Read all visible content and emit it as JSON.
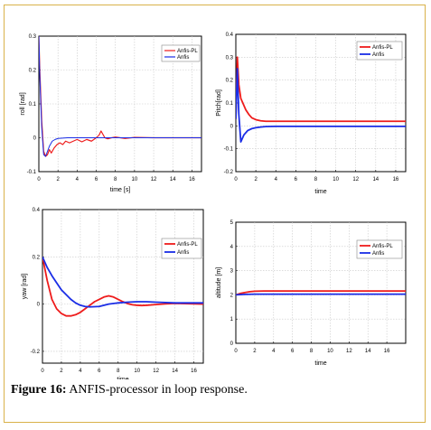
{
  "caption": {
    "label": "Figure 16:",
    "text": "ANFIS-processor in loop response."
  },
  "colors": {
    "series_1": "#ee1c1c",
    "series_2": "#1a2de6"
  },
  "chart_data": [
    {
      "type": "line",
      "id": "roll",
      "xlabel": "time [s]",
      "ylabel": "roll [rad]",
      "xlim": [
        0,
        17
      ],
      "ylim": [
        -0.1,
        0.3
      ],
      "xticks": [
        0,
        2,
        4,
        6,
        8,
        10,
        12,
        14,
        16
      ],
      "yticks": [
        -0.1,
        0,
        0.1,
        0.2,
        0.3
      ],
      "ytick_labels": [
        "-0.1",
        "0",
        "0.1",
        "0.2",
        "0.3"
      ],
      "grid": true,
      "legend_position": "top-right",
      "series": [
        {
          "name": "Anfis-PL",
          "color": "#ee1c1c",
          "width": 1.2,
          "x": [
            0,
            0.1,
            0.3,
            0.5,
            0.7,
            0.9,
            1.1,
            1.3,
            1.6,
            1.9,
            2.2,
            2.5,
            2.8,
            3.2,
            3.6,
            4.0,
            4.5,
            5.0,
            5.5,
            6.0,
            6.3,
            6.5,
            6.7,
            6.9,
            7.2,
            7.6,
            8.0,
            9,
            10,
            12,
            14,
            16,
            17
          ],
          "y": [
            0.3,
            0.2,
            0.05,
            -0.04,
            -0.055,
            -0.05,
            -0.035,
            -0.045,
            -0.03,
            -0.02,
            -0.015,
            -0.02,
            -0.01,
            -0.015,
            -0.01,
            -0.005,
            -0.012,
            -0.005,
            -0.01,
            0,
            0.008,
            0.02,
            0.01,
            0,
            -0.003,
            0,
            0.002,
            -0.002,
            0.001,
            0,
            0,
            0,
            0
          ]
        },
        {
          "name": "Anfis",
          "color": "#1a2de6",
          "width": 1.0,
          "x": [
            0,
            0.1,
            0.3,
            0.5,
            0.7,
            0.9,
            1.1,
            1.4,
            1.7,
            2.0,
            2.5,
            3.0,
            4.0,
            5.0,
            6.0,
            8.0,
            10,
            12,
            14,
            16,
            17
          ],
          "y": [
            0.3,
            0.18,
            0.03,
            -0.05,
            -0.055,
            -0.04,
            -0.025,
            -0.01,
            -0.005,
            -0.002,
            -0.001,
            0,
            0,
            0,
            0,
            0,
            0,
            0,
            0,
            0,
            0
          ]
        }
      ]
    },
    {
      "type": "line",
      "id": "pitch",
      "xlabel": "time",
      "ylabel": "Pitch[rad]",
      "xlim": [
        0,
        17
      ],
      "ylim": [
        -0.2,
        0.4
      ],
      "xticks": [
        0,
        2,
        4,
        6,
        8,
        10,
        12,
        14,
        16
      ],
      "yticks": [
        -0.2,
        -0.1,
        0,
        0.1,
        0.2,
        0.3,
        0.4
      ],
      "ytick_labels": [
        "-0.2",
        "-0.1",
        "0",
        "0.1",
        "0.2",
        "0.3",
        "0.4"
      ],
      "grid": true,
      "legend_position": "top-right",
      "series": [
        {
          "name": "Anfis-PL",
          "color": "#ee1c1c",
          "width": 1.8,
          "x": [
            0,
            0.15,
            0.3,
            0.5,
            0.7,
            1.0,
            1.3,
            1.6,
            2.0,
            2.5,
            3.0,
            4.0,
            6.0,
            8.0,
            10,
            12,
            14,
            16,
            17
          ],
          "y": [
            0.03,
            0.3,
            0.18,
            0.12,
            0.1,
            0.07,
            0.05,
            0.035,
            0.027,
            0.022,
            0.02,
            0.02,
            0.02,
            0.02,
            0.02,
            0.02,
            0.02,
            0.02,
            0.02
          ]
        },
        {
          "name": "Anfis",
          "color": "#1a2de6",
          "width": 1.8,
          "x": [
            0,
            0.15,
            0.3,
            0.5,
            0.8,
            1.2,
            1.6,
            2.0,
            2.5,
            3.0,
            4.0,
            6.0,
            8.0,
            10,
            12,
            14,
            16,
            17
          ],
          "y": [
            0.03,
            0.25,
            0.05,
            -0.07,
            -0.04,
            -0.02,
            -0.012,
            -0.008,
            -0.005,
            -0.003,
            -0.002,
            -0.002,
            -0.002,
            -0.002,
            -0.002,
            -0.002,
            -0.002,
            -0.002
          ]
        }
      ]
    },
    {
      "type": "line",
      "id": "yaw",
      "xlabel": "time",
      "ylabel": "yaw [rad]",
      "xlim": [
        0,
        17
      ],
      "ylim": [
        -0.25,
        0.4
      ],
      "xticks": [
        0,
        2,
        4,
        6,
        8,
        10,
        12,
        14,
        16
      ],
      "yticks": [
        -0.2,
        0,
        0.2,
        0.4
      ],
      "ytick_labels": [
        "-0.2",
        "0",
        "0.2",
        "0.4"
      ],
      "grid": true,
      "legend_position": "top-right",
      "series": [
        {
          "name": "Anfis-PL",
          "color": "#ee1c1c",
          "width": 1.8,
          "x": [
            0,
            0.5,
            1.0,
            1.5,
            2.0,
            2.5,
            3.0,
            3.5,
            4.0,
            4.5,
            5.0,
            5.5,
            6.0,
            6.5,
            7.0,
            7.5,
            8.0,
            8.5,
            9.0,
            9.5,
            10,
            10.5,
            11,
            12,
            13,
            14,
            15,
            16,
            17
          ],
          "y": [
            0.2,
            0.1,
            0.02,
            -0.02,
            -0.04,
            -0.05,
            -0.05,
            -0.045,
            -0.035,
            -0.02,
            -0.005,
            0.01,
            0.02,
            0.03,
            0.035,
            0.03,
            0.02,
            0.01,
            0.002,
            -0.003,
            -0.005,
            -0.006,
            -0.005,
            -0.002,
            0.001,
            0.003,
            0.002,
            0.001,
            0
          ]
        },
        {
          "name": "Anfis",
          "color": "#1a2de6",
          "width": 1.8,
          "x": [
            0,
            0.5,
            1.0,
            1.5,
            2.0,
            2.5,
            3.0,
            3.5,
            4.0,
            4.5,
            5.0,
            6.0,
            7.0,
            8.0,
            9.0,
            10,
            11,
            12,
            14,
            16,
            17
          ],
          "y": [
            0.2,
            0.155,
            0.12,
            0.09,
            0.06,
            0.04,
            0.02,
            0.005,
            -0.005,
            -0.01,
            -0.012,
            -0.01,
            0,
            0.005,
            0.008,
            0.01,
            0.01,
            0.008,
            0.005,
            0.005,
            0.005
          ]
        }
      ]
    },
    {
      "type": "line",
      "id": "altitude",
      "xlabel": "time",
      "ylabel": "altitude [m]",
      "xlim": [
        0,
        18
      ],
      "ylim": [
        0,
        5
      ],
      "xticks": [
        0,
        2,
        4,
        6,
        8,
        10,
        12,
        14,
        16
      ],
      "yticks": [
        0,
        1,
        2,
        3,
        4,
        5
      ],
      "ytick_labels": [
        "0",
        "1",
        "2",
        "3",
        "4",
        "5"
      ],
      "grid": true,
      "legend_position": "top-right",
      "series": [
        {
          "name": "Anfis-PL",
          "color": "#ee1c1c",
          "width": 1.8,
          "x": [
            0,
            0.5,
            1.0,
            1.5,
            2.0,
            3.0,
            4.0,
            6.0,
            8.0,
            10,
            12,
            14,
            16,
            18
          ],
          "y": [
            2.0,
            2.06,
            2.1,
            2.13,
            2.15,
            2.16,
            2.16,
            2.16,
            2.16,
            2.16,
            2.16,
            2.16,
            2.16,
            2.16
          ]
        },
        {
          "name": "Anfis",
          "color": "#1a2de6",
          "width": 1.8,
          "x": [
            0,
            0.5,
            1.0,
            2.0,
            4.0,
            6.0,
            8.0,
            10,
            12,
            14,
            16,
            18
          ],
          "y": [
            2.0,
            2.01,
            2.02,
            2.03,
            2.03,
            2.03,
            2.03,
            2.03,
            2.03,
            2.03,
            2.03,
            2.03
          ]
        }
      ]
    }
  ]
}
